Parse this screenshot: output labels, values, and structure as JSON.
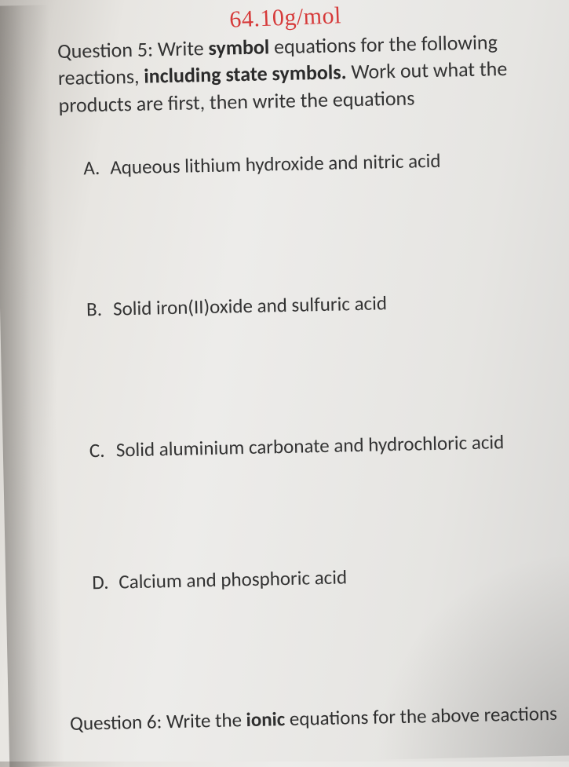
{
  "handwritten_top": "64.10g/mol",
  "question5": {
    "prefix": "Question 5: Write ",
    "bold1": "symbol",
    "mid1": " equations for the following reactions, ",
    "bold2": "including state symbols.",
    "tail": " Work out what the products are first, then write the equations"
  },
  "items": {
    "A": {
      "letter": "A.",
      "text": "Aqueous lithium hydroxide and nitric acid"
    },
    "B": {
      "letter": "B.",
      "text": "Solid iron(II)oxide and sulfuric acid"
    },
    "C": {
      "letter": "C.",
      "text": "Solid aluminium carbonate and hydrochloric acid"
    },
    "D": {
      "letter": "D.",
      "text": "Calcium and phosphoric acid"
    }
  },
  "question6": {
    "prefix": "Question 6: Write the ",
    "bold": "ionic",
    "tail": " equations for the above reactions"
  },
  "style": {
    "body_font_size_pt": 19,
    "handwritten_color": "#d63a3a",
    "text_color": "#2a2a2a",
    "page_bg_light": "#edeceA",
    "page_bg_dark_edge": "#b8b4af",
    "rotation_deg": -1.2
  }
}
